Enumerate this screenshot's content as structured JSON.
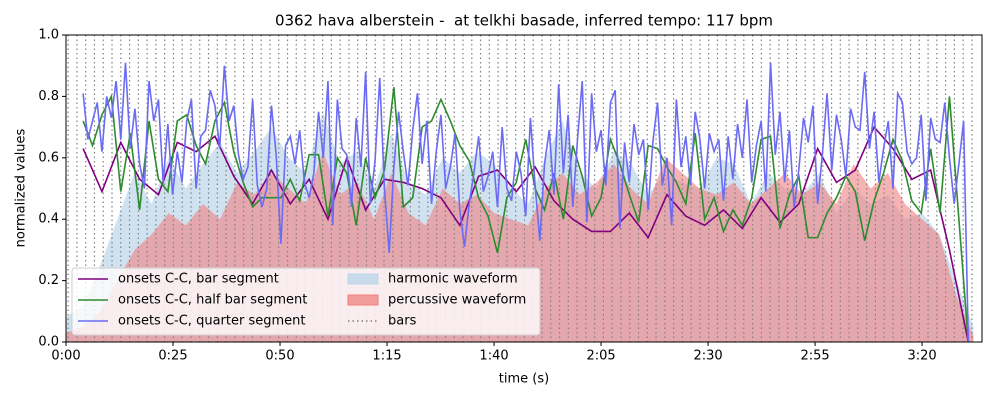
{
  "chart_data": {
    "type": "line",
    "title": "0362 hava alberstein -  at telkhi basade, inferred tempo: 117 bpm",
    "xlabel": "time (s)",
    "ylabel": "normalized values",
    "xlim": [
      0,
      214
    ],
    "ylim": [
      0,
      1
    ],
    "xticks": [
      {
        "value": 0,
        "label": "0:00"
      },
      {
        "value": 25,
        "label": "0:25"
      },
      {
        "value": 50,
        "label": "0:50"
      },
      {
        "value": 75,
        "label": "1:15"
      },
      {
        "value": 100,
        "label": "1:40"
      },
      {
        "value": 125,
        "label": "2:05"
      },
      {
        "value": 150,
        "label": "2:30"
      },
      {
        "value": 175,
        "label": "2:55"
      },
      {
        "value": 200,
        "label": "3:20"
      }
    ],
    "yticks": [
      {
        "value": 0,
        "label": "0.0"
      },
      {
        "value": 0.2,
        "label": "0.2"
      },
      {
        "value": 0.4,
        "label": "0.4"
      },
      {
        "value": 0.6,
        "label": "0.6"
      },
      {
        "value": 0.8,
        "label": "0.8"
      },
      {
        "value": 1,
        "label": "1.0"
      }
    ],
    "legend": "lower left",
    "series": [
      {
        "name": "onsets C-C, bar segment",
        "color": "#800080",
        "x": [
          4,
          8.4,
          12.8,
          17.2,
          21.6,
          26,
          30.4,
          34.8,
          39.2,
          43.6,
          48,
          52.4,
          56.8,
          61.2,
          65.6,
          70,
          74.4,
          78.8,
          83.2,
          87.6,
          92,
          96.4,
          100.8,
          105.2,
          109.6,
          114,
          118.4,
          122.8,
          127.2,
          131.6,
          136,
          140.4,
          144.8,
          149.2,
          153.6,
          158,
          162.4,
          166.8,
          171.2,
          175.6,
          180,
          184.4,
          188.8,
          193.2,
          197.6,
          202,
          206.4,
          210.8
        ],
        "values": [
          0.63,
          0.49,
          0.65,
          0.53,
          0.48,
          0.65,
          0.62,
          0.67,
          0.54,
          0.45,
          0.56,
          0.45,
          0.53,
          0.4,
          0.6,
          0.43,
          0.53,
          0.52,
          0.5,
          0.47,
          0.38,
          0.54,
          0.56,
          0.49,
          0.57,
          0.46,
          0.4,
          0.36,
          0.36,
          0.42,
          0.34,
          0.48,
          0.41,
          0.38,
          0.43,
          0.37,
          0.47,
          0.39,
          0.45,
          0.63,
          0.52,
          0.56,
          0.7,
          0.63,
          0.53,
          0.56,
          0.3,
          0.0
        ]
      },
      {
        "name": "onsets C-C, half bar segment",
        "color": "#2e8b2e",
        "x": [
          4,
          6.2,
          8.4,
          10.6,
          12.8,
          15,
          17.2,
          19.4,
          21.6,
          23.8,
          26,
          28.2,
          30.4,
          32.6,
          34.8,
          37,
          39.2,
          41.4,
          43.6,
          45.8,
          48,
          50.2,
          52.4,
          54.6,
          56.8,
          59,
          61.2,
          63.4,
          65.6,
          67.8,
          70,
          72.2,
          74.4,
          76.6,
          78.8,
          81,
          83.2,
          85.4,
          87.6,
          89.8,
          92,
          94.2,
          96.4,
          98.6,
          100.8,
          103,
          105.2,
          107.4,
          109.6,
          111.8,
          114,
          116.2,
          118.4,
          120.6,
          122.8,
          125,
          127.2,
          129.4,
          131.6,
          133.8,
          136,
          138.2,
          140.4,
          142.6,
          144.8,
          147,
          149.2,
          151.4,
          153.6,
          155.8,
          158,
          160.2,
          162.4,
          164.6,
          166.8,
          169,
          171.2,
          173.4,
          175.6,
          177.8,
          180,
          182.2,
          184.4,
          186.6,
          188.8,
          191,
          193.2,
          195.4,
          197.6,
          199.8,
          202,
          204.2,
          206.4,
          208.6,
          210.8
        ],
        "values": [
          0.72,
          0.64,
          0.74,
          0.8,
          0.49,
          0.68,
          0.43,
          0.72,
          0.53,
          0.49,
          0.72,
          0.74,
          0.64,
          0.58,
          0.72,
          0.78,
          0.62,
          0.52,
          0.44,
          0.47,
          0.47,
          0.47,
          0.53,
          0.46,
          0.61,
          0.61,
          0.41,
          0.6,
          0.55,
          0.38,
          0.6,
          0.47,
          0.56,
          0.83,
          0.44,
          0.47,
          0.7,
          0.72,
          0.79,
          0.72,
          0.64,
          0.59,
          0.47,
          0.41,
          0.29,
          0.47,
          0.52,
          0.66,
          0.5,
          0.43,
          0.55,
          0.4,
          0.64,
          0.54,
          0.41,
          0.47,
          0.66,
          0.58,
          0.48,
          0.39,
          0.64,
          0.63,
          0.57,
          0.52,
          0.45,
          0.68,
          0.4,
          0.47,
          0.36,
          0.43,
          0.38,
          0.47,
          0.66,
          0.67,
          0.37,
          0.48,
          0.54,
          0.34,
          0.34,
          0.42,
          0.47,
          0.54,
          0.49,
          0.33,
          0.46,
          0.55,
          0.66,
          0.59,
          0.46,
          0.42,
          0.63,
          0.42,
          0.8,
          0.4,
          0.0
        ]
      },
      {
        "name": "onsets C-C, quarter segment",
        "color": "#6b6bf5",
        "x": [
          4,
          5.1,
          6.2,
          7.3,
          8.4,
          9.5,
          10.6,
          11.7,
          12.8,
          13.9,
          15,
          16.1,
          17.2,
          18.3,
          19.4,
          20.5,
          21.6,
          22.7,
          23.8,
          24.9,
          26,
          27.1,
          28.2,
          29.3,
          30.4,
          31.5,
          32.6,
          33.7,
          34.8,
          35.9,
          37,
          38.1,
          39.2,
          40.3,
          41.4,
          42.5,
          43.6,
          44.7,
          45.8,
          46.9,
          48,
          49.1,
          50.2,
          51.3,
          52.4,
          53.5,
          54.6,
          55.7,
          56.8,
          57.9,
          59,
          60.1,
          61.2,
          62.3,
          63.4,
          64.5,
          65.6,
          66.7,
          67.8,
          68.9,
          70,
          71.1,
          72.2,
          73.3,
          74.4,
          75.5,
          76.6,
          77.7,
          78.8,
          79.9,
          81,
          82.1,
          83.2,
          84.3,
          85.4,
          86.5,
          87.6,
          88.7,
          89.8,
          90.9,
          92,
          93.1,
          94.2,
          95.3,
          96.4,
          97.5,
          98.6,
          99.7,
          100.8,
          101.9,
          103,
          104.1,
          105.2,
          106.3,
          107.4,
          108.5,
          109.6,
          110.7,
          111.8,
          112.9,
          114,
          115.1,
          116.2,
          117.3,
          118.4,
          119.5,
          120.6,
          121.7,
          122.8,
          123.9,
          125,
          126.1,
          127.2,
          128.3,
          129.4,
          130.5,
          131.6,
          132.7,
          133.8,
          134.9,
          136,
          137.1,
          138.2,
          139.3,
          140.4,
          141.5,
          142.6,
          143.7,
          144.8,
          145.9,
          147,
          148.1,
          149.2,
          150.3,
          151.4,
          152.5,
          153.6,
          154.7,
          155.8,
          156.9,
          158,
          159.1,
          160.2,
          161.3,
          162.4,
          163.5,
          164.6,
          165.7,
          166.8,
          167.9,
          169,
          170.1,
          171.2,
          172.3,
          173.4,
          174.5,
          175.6,
          176.7,
          177.8,
          178.9,
          180,
          181.1,
          182.2,
          183.3,
          184.4,
          185.5,
          186.6,
          187.7,
          188.8,
          189.9,
          191,
          192.1,
          193.2,
          194.3,
          195.4,
          196.5,
          197.6,
          198.7,
          199.8,
          200.9,
          202,
          203.1,
          204.2,
          205.3,
          206.4,
          207.5,
          208.6,
          209.7,
          210.8
        ],
        "values": [
          0.81,
          0.66,
          0.72,
          0.78,
          0.62,
          0.8,
          0.73,
          0.85,
          0.66,
          0.91,
          0.63,
          0.76,
          0.58,
          0.5,
          0.85,
          0.72,
          0.79,
          0.52,
          0.71,
          0.48,
          0.62,
          0.52,
          0.72,
          0.79,
          0.5,
          0.67,
          0.69,
          0.82,
          0.77,
          0.63,
          0.9,
          0.72,
          0.77,
          0.61,
          0.53,
          0.57,
          0.79,
          0.51,
          0.44,
          0.5,
          0.77,
          0.61,
          0.32,
          0.64,
          0.67,
          0.58,
          0.69,
          0.52,
          0.47,
          0.55,
          0.75,
          0.6,
          0.85,
          0.38,
          0.79,
          0.63,
          0.61,
          0.44,
          0.73,
          0.57,
          0.88,
          0.45,
          0.59,
          0.86,
          0.5,
          0.29,
          0.57,
          0.75,
          0.62,
          0.51,
          0.69,
          0.81,
          0.58,
          0.72,
          0.45,
          0.62,
          0.74,
          0.5,
          0.57,
          0.68,
          0.43,
          0.31,
          0.45,
          0.55,
          0.67,
          0.49,
          0.54,
          0.62,
          0.44,
          0.7,
          0.5,
          0.46,
          0.62,
          0.55,
          0.41,
          0.73,
          0.51,
          0.33,
          0.58,
          0.69,
          0.48,
          0.84,
          0.55,
          0.74,
          0.44,
          0.66,
          0.85,
          0.39,
          0.81,
          0.62,
          0.69,
          0.51,
          0.78,
          0.82,
          0.37,
          0.65,
          0.52,
          0.71,
          0.61,
          0.66,
          0.43,
          0.65,
          0.78,
          0.51,
          0.6,
          0.38,
          0.79,
          0.57,
          0.67,
          0.51,
          0.75,
          0.66,
          0.5,
          0.68,
          0.62,
          0.66,
          0.46,
          0.67,
          0.53,
          0.71,
          0.6,
          0.79,
          0.52,
          0.64,
          0.72,
          0.49,
          0.91,
          0.61,
          0.75,
          0.52,
          0.69,
          0.44,
          0.56,
          0.73,
          0.65,
          0.77,
          0.45,
          0.61,
          0.81,
          0.56,
          0.74,
          0.66,
          0.54,
          0.76,
          0.7,
          0.69,
          0.88,
          0.63,
          0.75,
          0.52,
          0.63,
          0.72,
          0.5,
          0.81,
          0.78,
          0.62,
          0.58,
          0.6,
          0.74,
          0.46,
          0.73,
          0.66,
          0.65,
          0.78,
          0.6,
          0.45,
          0.58,
          0.72,
          0.0
        ]
      }
    ],
    "areas": [
      {
        "name": "harmonic waveform",
        "color": "#bcd6ea",
        "x": [
          0,
          4,
          8,
          12,
          16,
          20,
          24,
          28,
          32,
          36,
          40,
          44,
          48,
          52,
          56,
          60,
          64,
          68,
          72,
          76,
          80,
          84,
          88,
          92,
          96,
          100,
          104,
          108,
          112,
          116,
          120,
          124,
          128,
          132,
          136,
          140,
          144,
          148,
          152,
          156,
          160,
          164,
          168,
          172,
          176,
          180,
          184,
          188,
          192,
          196,
          200,
          204,
          208,
          212
        ],
        "values": [
          0.08,
          0.12,
          0.25,
          0.4,
          0.55,
          0.45,
          0.6,
          0.5,
          0.58,
          0.65,
          0.55,
          0.62,
          0.7,
          0.6,
          0.55,
          0.75,
          0.58,
          0.62,
          0.5,
          0.68,
          0.52,
          0.48,
          0.6,
          0.55,
          0.62,
          0.58,
          0.5,
          0.45,
          0.6,
          0.72,
          0.55,
          0.5,
          0.62,
          0.58,
          0.48,
          0.55,
          0.52,
          0.5,
          0.6,
          0.58,
          0.45,
          0.55,
          0.5,
          0.48,
          0.55,
          0.42,
          0.5,
          0.45,
          0.48,
          0.4,
          0.42,
          0.35,
          0.2,
          0.05
        ]
      },
      {
        "name": "percussive waveform",
        "color": "#f08080",
        "x": [
          0,
          4,
          8,
          12,
          16,
          20,
          24,
          28,
          32,
          36,
          40,
          44,
          48,
          52,
          56,
          60,
          64,
          68,
          72,
          76,
          80,
          84,
          88,
          92,
          96,
          100,
          104,
          108,
          112,
          116,
          120,
          124,
          128,
          132,
          136,
          140,
          144,
          148,
          152,
          156,
          160,
          164,
          168,
          172,
          176,
          180,
          184,
          188,
          192,
          196,
          200,
          204,
          208,
          212
        ],
        "values": [
          0.03,
          0.05,
          0.1,
          0.2,
          0.3,
          0.35,
          0.42,
          0.38,
          0.45,
          0.4,
          0.52,
          0.48,
          0.55,
          0.5,
          0.45,
          0.62,
          0.48,
          0.52,
          0.4,
          0.55,
          0.42,
          0.38,
          0.5,
          0.45,
          0.48,
          0.42,
          0.4,
          0.38,
          0.5,
          0.55,
          0.48,
          0.52,
          0.58,
          0.5,
          0.45,
          0.6,
          0.55,
          0.5,
          0.48,
          0.52,
          0.45,
          0.5,
          0.55,
          0.48,
          0.52,
          0.45,
          0.58,
          0.5,
          0.55,
          0.45,
          0.4,
          0.35,
          0.15,
          0.02
        ]
      }
    ],
    "bars": {
      "name": "bars",
      "color": "#808080",
      "x": [
        0.5,
        2.55,
        4.6,
        6.65,
        8.7,
        10.75,
        12.8,
        14.85,
        16.9,
        18.95,
        21,
        23.05,
        25.1,
        27.15,
        29.2,
        31.25,
        33.3,
        35.35,
        37.4,
        39.45,
        41.5,
        43.55,
        45.6,
        47.65,
        49.7,
        51.75,
        53.8,
        55.85,
        57.9,
        59.95,
        62,
        64.05,
        66.1,
        68.15,
        70.2,
        72.25,
        74.3,
        76.35,
        78.4,
        80.45,
        82.5,
        84.55,
        86.6,
        88.65,
        90.7,
        92.75,
        94.8,
        96.85,
        98.9,
        100.95,
        103,
        105.05,
        107.1,
        109.15,
        111.2,
        113.25,
        115.3,
        117.35,
        119.4,
        121.45,
        123.5,
        125.55,
        127.6,
        129.65,
        131.7,
        133.75,
        135.8,
        137.85,
        139.9,
        141.95,
        144,
        146.05,
        148.1,
        150.15,
        152.2,
        154.25,
        156.3,
        158.35,
        160.4,
        162.45,
        164.5,
        166.55,
        168.6,
        170.65,
        172.7,
        174.75,
        176.8,
        178.85,
        180.9,
        182.95,
        185,
        187.05,
        189.1,
        191.15,
        193.2,
        195.25,
        197.3,
        199.35,
        201.4,
        203.45,
        205.5,
        207.55,
        209.6,
        211.65
      ]
    }
  }
}
